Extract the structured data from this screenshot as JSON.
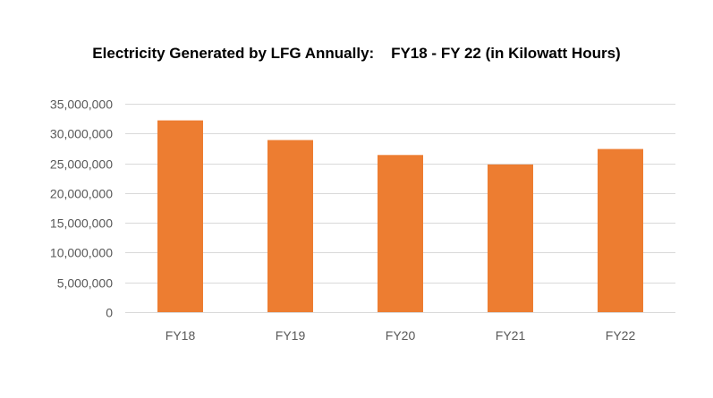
{
  "chart_data": {
    "type": "bar",
    "title": "Electricity Generated by LFG Annually:    FY18 - FY 22 (in Kilowatt Hours)",
    "xlabel": "",
    "ylabel": "",
    "categories": [
      "FY18",
      "FY19",
      "FY20",
      "FY21",
      "FY22"
    ],
    "values": [
      32200000,
      28900000,
      26400000,
      24800000,
      27400000
    ],
    "ylim": [
      0,
      35000000
    ],
    "yticks": [
      0,
      5000000,
      10000000,
      15000000,
      20000000,
      25000000,
      30000000,
      35000000
    ],
    "ytick_labels": [
      "0",
      "5,000,000",
      "10,000,000",
      "15,000,000",
      "20,000,000",
      "25,000,000",
      "30,000,000",
      "35,000,000"
    ],
    "grid": true,
    "legend": "none",
    "bar_color": "#ED7D31",
    "grid_color": "#D9D9D9",
    "tick_label_color": "#595959"
  }
}
